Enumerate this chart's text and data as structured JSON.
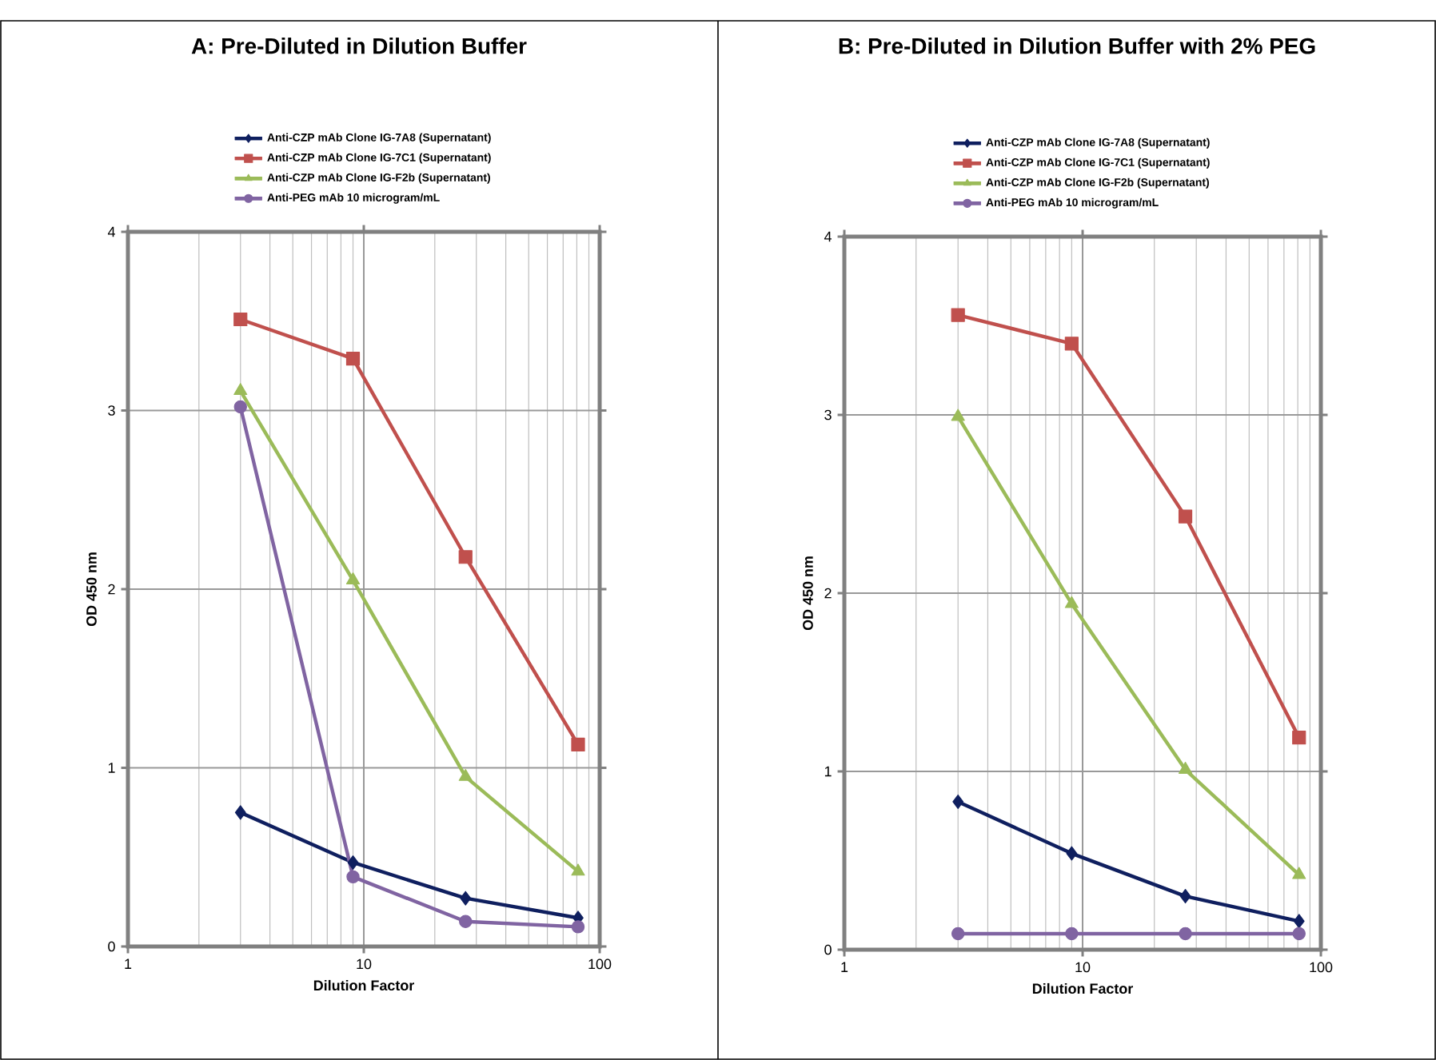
{
  "chart_data": [
    {
      "type": "line",
      "title": "A: Pre-Diluted in Dilution Buffer",
      "xlabel": "Dilution Factor",
      "ylabel": "OD 450 nm",
      "x": [
        3,
        9,
        27,
        81
      ],
      "xlim": [
        1,
        100
      ],
      "xticks": [
        1,
        10,
        100
      ],
      "ylim": [
        0,
        4
      ],
      "yticks": [
        0,
        1,
        2,
        3,
        4
      ],
      "log": "x",
      "grid": true,
      "legend": "top",
      "series": [
        {
          "name": "Anti-CZP mAb Clone IG-7A8 (Supernatant)",
          "color": "#0f1f5f",
          "marker": "diamond",
          "values": [
            0.75,
            0.47,
            0.27,
            0.16
          ]
        },
        {
          "name": "Anti-CZP mAb Clone IG-7C1 (Supernatant)",
          "color": "#c0504d",
          "marker": "square",
          "values": [
            3.51,
            3.29,
            2.18,
            1.13
          ]
        },
        {
          "name": "Anti-CZP mAb Clone IG-F2b (Supernatant)",
          "color": "#9bbb59",
          "marker": "triangle",
          "values": [
            3.11,
            2.05,
            0.95,
            0.42
          ]
        },
        {
          "name": "Anti-PEG mAb 10 microgram/mL",
          "color": "#8064a2",
          "marker": "circle",
          "values": [
            3.02,
            0.39,
            0.14,
            0.11
          ]
        }
      ]
    },
    {
      "type": "line",
      "title": "B: Pre-Diluted in Dilution Buffer with 2% PEG",
      "xlabel": "Dilution Factor",
      "ylabel": "OD 450 nm",
      "x": [
        3,
        9,
        27,
        81
      ],
      "xlim": [
        1,
        100
      ],
      "xticks": [
        1,
        10,
        100
      ],
      "ylim": [
        0,
        4
      ],
      "yticks": [
        0,
        1,
        2,
        3,
        4
      ],
      "log": "x",
      "grid": true,
      "legend": "top",
      "series": [
        {
          "name": "Anti-CZP mAb Clone IG-7A8 (Supernatant)",
          "color": "#0f1f5f",
          "marker": "diamond",
          "values": [
            0.83,
            0.54,
            0.3,
            0.16
          ]
        },
        {
          "name": "Anti-CZP mAb Clone IG-7C1 (Supernatant)",
          "color": "#c0504d",
          "marker": "square",
          "values": [
            3.56,
            3.4,
            2.43,
            1.19
          ]
        },
        {
          "name": "Anti-CZP mAb Clone IG-F2b (Supernatant)",
          "color": "#9bbb59",
          "marker": "triangle",
          "values": [
            2.99,
            1.94,
            1.01,
            0.42
          ]
        },
        {
          "name": "Anti-PEG mAb 10 microgram/mL",
          "color": "#8064a2",
          "marker": "circle",
          "values": [
            0.09,
            0.09,
            0.09,
            0.09
          ]
        }
      ]
    }
  ]
}
